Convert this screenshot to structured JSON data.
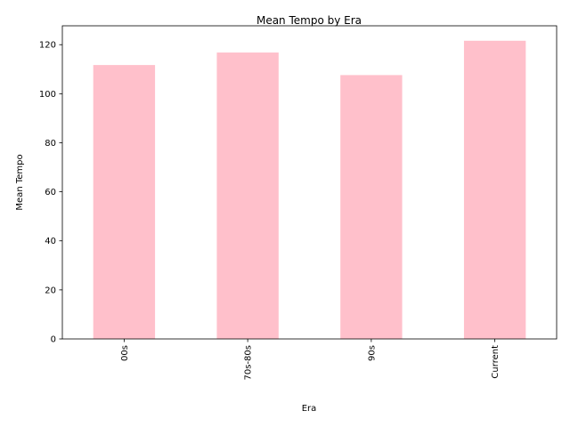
{
  "chart_data": {
    "type": "bar",
    "title": "Mean Tempo by Era",
    "xlabel": "Era",
    "ylabel": "Mean Tempo",
    "categories": [
      "00s",
      "70s-80s",
      "90s",
      "Current"
    ],
    "values": [
      111.7,
      116.8,
      107.6,
      121.6
    ],
    "ylim": [
      0,
      127.7
    ],
    "yticks": [
      0,
      20,
      40,
      60,
      80,
      100,
      120
    ],
    "bar_color": "#ffc0cb",
    "grid": false,
    "legend": "none"
  }
}
